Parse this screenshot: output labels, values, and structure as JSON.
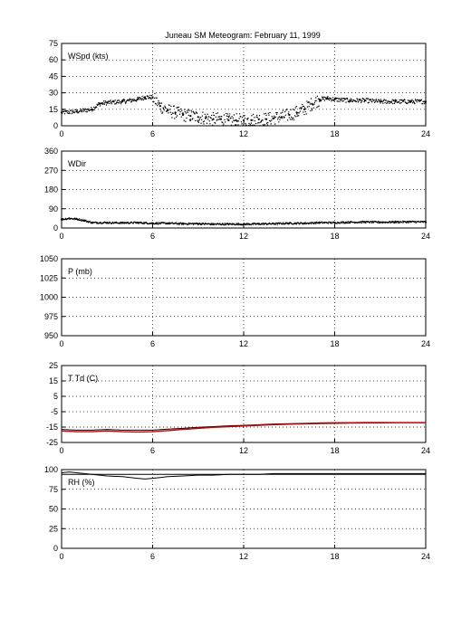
{
  "figure": {
    "title": "Juneau SM Meteogram:   February 11, 1999"
  },
  "chart_data": [
    {
      "type": "scatter",
      "label": "WSpd (kts)",
      "xlim": [
        0,
        24
      ],
      "xticks": [
        0,
        6,
        12,
        18,
        24
      ],
      "ylim": [
        0,
        75
      ],
      "yticks": [
        0,
        15,
        30,
        45,
        60,
        75
      ],
      "grid": "dotted",
      "series": [
        {
          "color": "#000000",
          "x": [
            0,
            1,
            2,
            2.5,
            3,
            4,
            5,
            5.5,
            6,
            6.5,
            7,
            7.5,
            8,
            8.5,
            9,
            9.5,
            10,
            10.5,
            11,
            11.5,
            12,
            12.5,
            13,
            13.5,
            14,
            14.5,
            15,
            15.5,
            16,
            16.5,
            17,
            17.5,
            18,
            19,
            20,
            21,
            22,
            23,
            24
          ],
          "y": [
            12,
            13,
            15,
            20,
            21,
            22,
            24,
            26,
            26,
            18,
            14,
            12,
            10,
            9,
            8,
            7,
            6,
            6,
            5,
            5,
            5,
            5,
            6,
            6,
            7,
            8,
            10,
            12,
            15,
            20,
            24,
            25,
            24,
            23,
            23,
            22,
            22,
            22,
            22
          ]
        }
      ]
    },
    {
      "type": "scatter",
      "label": "WDir",
      "xlim": [
        0,
        24
      ],
      "xticks": [
        0,
        6,
        12,
        18,
        24
      ],
      "ylim": [
        0,
        360
      ],
      "yticks": [
        0,
        90,
        180,
        270,
        360
      ],
      "grid": "dotted",
      "series": [
        {
          "color": "#000000",
          "x": [
            0,
            0.5,
            1,
            1.5,
            2,
            3,
            4,
            5,
            6,
            7,
            8,
            9,
            10,
            11,
            12,
            13,
            14,
            15,
            16,
            17,
            18,
            19,
            20,
            21,
            22,
            23,
            24
          ],
          "y": [
            40,
            45,
            42,
            35,
            25,
            25,
            24,
            25,
            22,
            22,
            20,
            20,
            18,
            18,
            18,
            19,
            20,
            22,
            22,
            25,
            25,
            27,
            28,
            27,
            28,
            29,
            28
          ]
        }
      ]
    },
    {
      "type": "line",
      "label": "P (mb)",
      "xlim": [
        0,
        24
      ],
      "xticks": [
        0,
        6,
        12,
        18,
        24
      ],
      "ylim": [
        950,
        1050
      ],
      "yticks": [
        950,
        975,
        1000,
        1025,
        1050
      ],
      "grid": "dotted",
      "series": []
    },
    {
      "type": "line",
      "label": "T Td (C)",
      "xlim": [
        0,
        24
      ],
      "xticks": [
        0,
        6,
        12,
        18,
        24
      ],
      "ylim": [
        -25,
        25
      ],
      "yticks": [
        -25,
        -15,
        -5,
        5,
        15,
        25
      ],
      "grid": "dotted",
      "series": [
        {
          "color": "#000000",
          "x": [
            0,
            1,
            2,
            3,
            4,
            5,
            6,
            7,
            8,
            9,
            10,
            11,
            12,
            13,
            14,
            15,
            16,
            17,
            18,
            19,
            20,
            21,
            22,
            23,
            24
          ],
          "y": [
            -16.5,
            -17,
            -17,
            -16.5,
            -17,
            -17,
            -17,
            -16.3,
            -15.8,
            -15.2,
            -14.7,
            -14.2,
            -13.9,
            -13.5,
            -13,
            -12.8,
            -12.6,
            -12.3,
            -12.1,
            -12.1,
            -12,
            -12,
            -12,
            -12,
            -12
          ]
        },
        {
          "color": "#cc0000",
          "x": [
            0,
            1,
            2,
            3,
            4,
            5,
            6,
            7,
            8,
            9,
            10,
            11,
            12,
            13,
            14,
            15,
            16,
            17,
            18,
            19,
            20,
            21,
            22,
            23,
            24
          ],
          "y": [
            -17.5,
            -18,
            -18,
            -17.5,
            -18,
            -18.2,
            -18,
            -17.3,
            -16.5,
            -15.8,
            -15.2,
            -14.7,
            -14.3,
            -13.8,
            -13.4,
            -13.1,
            -12.9,
            -12.7,
            -12.5,
            -12.4,
            -12.3,
            -12.3,
            -12.2,
            -12.2,
            -12.2
          ]
        }
      ]
    },
    {
      "type": "line",
      "label": "RH (%)",
      "xlim": [
        0,
        24
      ],
      "xticks": [
        0,
        6,
        12,
        18,
        24
      ],
      "ylim": [
        0,
        100
      ],
      "yticks": [
        0,
        25,
        50,
        75,
        100
      ],
      "grid": "dotted",
      "series": [
        {
          "color": "#000000",
          "x": [
            0,
            0.5,
            1,
            1.5,
            2,
            3,
            4,
            5,
            5.5,
            6,
            6.5,
            7,
            8,
            9,
            10,
            11,
            12,
            13,
            14,
            15,
            16,
            17,
            18,
            19,
            20,
            21,
            22,
            23,
            24
          ],
          "y": [
            96,
            97,
            96,
            95,
            94,
            92,
            91,
            89,
            88,
            89,
            90,
            91,
            92,
            93,
            93,
            94,
            94,
            94,
            95,
            95,
            95,
            95,
            95,
            95,
            95,
            95,
            95,
            95,
            95
          ]
        },
        {
          "color": "#000000",
          "x": [
            0,
            24
          ],
          "y": [
            94,
            94
          ]
        }
      ]
    }
  ]
}
